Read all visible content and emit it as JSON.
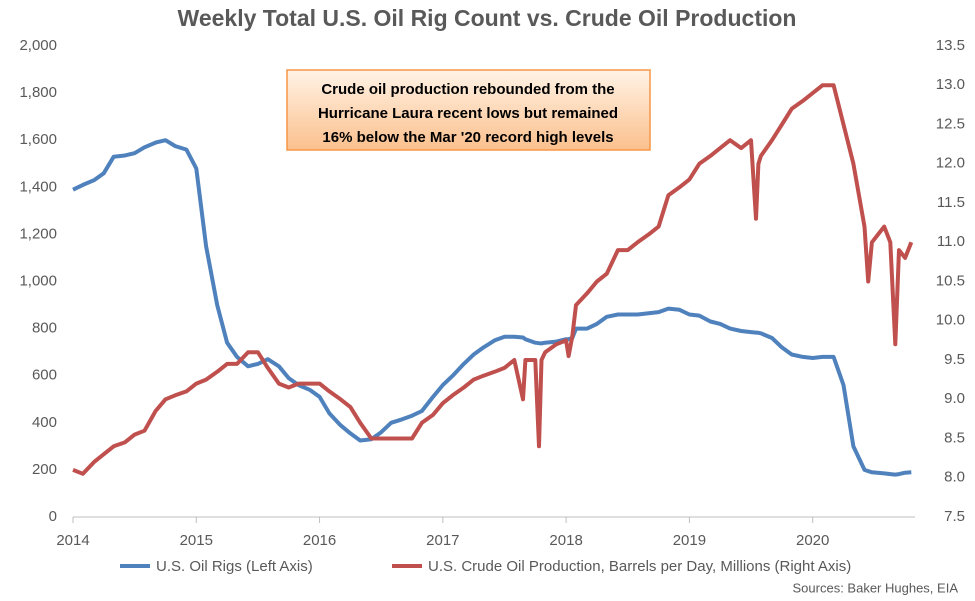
{
  "chart_data": {
    "type": "line",
    "title": "Weekly Total U.S. Oil Rig Count vs. Crude Oil Production",
    "annotation": [
      "Crude oil production rebounded from the",
      "Hurricane Laura recent lows but remained",
      "16% below the Mar '20 record high levels"
    ],
    "source": "Sources: Baker Hughes, EIA",
    "x": [
      2014.0,
      2014.08,
      2014.17,
      2014.25,
      2014.33,
      2014.42,
      2014.5,
      2014.58,
      2014.67,
      2014.75,
      2014.83,
      2014.92,
      2015.0,
      2015.08,
      2015.17,
      2015.25,
      2015.33,
      2015.42,
      2015.5,
      2015.58,
      2015.67,
      2015.75,
      2015.83,
      2015.92,
      2016.0,
      2016.08,
      2016.17,
      2016.25,
      2016.33,
      2016.42,
      2016.5,
      2016.58,
      2016.67,
      2016.75,
      2016.83,
      2016.92,
      2017.0,
      2017.08,
      2017.17,
      2017.25,
      2017.33,
      2017.42,
      2017.5,
      2017.58,
      2017.65,
      2017.67,
      2017.75,
      2017.78,
      2017.8,
      2017.83,
      2017.92,
      2018.0,
      2018.02,
      2018.05,
      2018.08,
      2018.17,
      2018.25,
      2018.33,
      2018.42,
      2018.5,
      2018.58,
      2018.67,
      2018.75,
      2018.83,
      2018.92,
      2019.0,
      2019.08,
      2019.17,
      2019.25,
      2019.33,
      2019.42,
      2019.5,
      2019.54,
      2019.56,
      2019.58,
      2019.67,
      2019.75,
      2019.83,
      2019.92,
      2020.0,
      2020.08,
      2020.17,
      2020.25,
      2020.33,
      2020.42,
      2020.45,
      2020.48,
      2020.58,
      2020.63,
      2020.67,
      2020.7,
      2020.75,
      2020.8
    ],
    "series": [
      {
        "name": "U.S. Oil Rigs (Left Axis)",
        "color": "#4f81bd",
        "axis": "y",
        "values": [
          1390,
          1410,
          1430,
          1460,
          1530,
          1535,
          1545,
          1570,
          1590,
          1600,
          1575,
          1560,
          1480,
          1150,
          900,
          740,
          680,
          640,
          650,
          670,
          640,
          590,
          560,
          540,
          510,
          440,
          390,
          355,
          325,
          330,
          360,
          400,
          415,
          430,
          450,
          510,
          560,
          600,
          650,
          690,
          720,
          750,
          765,
          765,
          762,
          755,
          740,
          738,
          737,
          740,
          745,
          755,
          755,
          760,
          800,
          800,
          820,
          850,
          860,
          860,
          860,
          865,
          870,
          885,
          880,
          860,
          855,
          830,
          820,
          800,
          790,
          785,
          783,
          782,
          780,
          760,
          720,
          690,
          680,
          675,
          680,
          680,
          560,
          300,
          200,
          195,
          190,
          185,
          182,
          180,
          182,
          188,
          190
        ]
      },
      {
        "name": "U.S. Crude Oil Production, Barrels per Day, Millions (Right Axis)",
        "color": "#c0504d",
        "axis": "y2",
        "values": [
          8.1,
          8.05,
          8.2,
          8.3,
          8.4,
          8.45,
          8.55,
          8.6,
          8.85,
          9.0,
          9.05,
          9.1,
          9.2,
          9.25,
          9.35,
          9.45,
          9.45,
          9.6,
          9.6,
          9.4,
          9.2,
          9.15,
          9.2,
          9.2,
          9.2,
          9.1,
          9.0,
          8.9,
          8.7,
          8.5,
          8.5,
          8.5,
          8.5,
          8.5,
          8.7,
          8.8,
          8.95,
          9.05,
          9.15,
          9.25,
          9.3,
          9.35,
          9.4,
          9.5,
          9.0,
          9.5,
          9.5,
          8.4,
          9.5,
          9.6,
          9.7,
          9.75,
          9.55,
          9.8,
          10.2,
          10.35,
          10.5,
          10.6,
          10.9,
          10.9,
          11.0,
          11.1,
          11.2,
          11.6,
          11.7,
          11.8,
          12.0,
          12.1,
          12.2,
          12.3,
          12.2,
          12.3,
          11.3,
          12.0,
          12.1,
          12.3,
          12.5,
          12.7,
          12.8,
          12.9,
          13.0,
          13.0,
          12.5,
          12.0,
          11.2,
          10.5,
          11.0,
          11.2,
          11.0,
          9.7,
          10.9,
          10.8,
          11.0
        ]
      }
    ],
    "xlim": [
      2014,
      2020.83
    ],
    "xticks": [
      2014,
      2015,
      2016,
      2017,
      2018,
      2019,
      2020
    ],
    "ylim": [
      0,
      2000
    ],
    "yticks": [
      0,
      200,
      400,
      600,
      800,
      {
        "value": 1000,
        "label": "1,000"
      },
      {
        "value": 1200,
        "label": "1,200"
      },
      {
        "value": 1400,
        "label": "1,400"
      },
      {
        "value": 1600,
        "label": "1,600"
      },
      {
        "value": 1800,
        "label": "1,800"
      },
      {
        "value": 2000,
        "label": "2,000"
      }
    ],
    "y2lim": [
      7.5,
      13.5
    ],
    "y2ticks": [
      7.5,
      {
        "value": 8,
        "label": "8.0"
      },
      8.5,
      {
        "value": 9,
        "label": "9.0"
      },
      9.5,
      {
        "value": 10,
        "label": "10.0"
      },
      10.5,
      {
        "value": 11,
        "label": "11.0"
      },
      11.5,
      {
        "value": 12,
        "label": "12.0"
      },
      12.5,
      {
        "value": 13,
        "label": "13.0"
      },
      13.5
    ],
    "grid": false
  }
}
